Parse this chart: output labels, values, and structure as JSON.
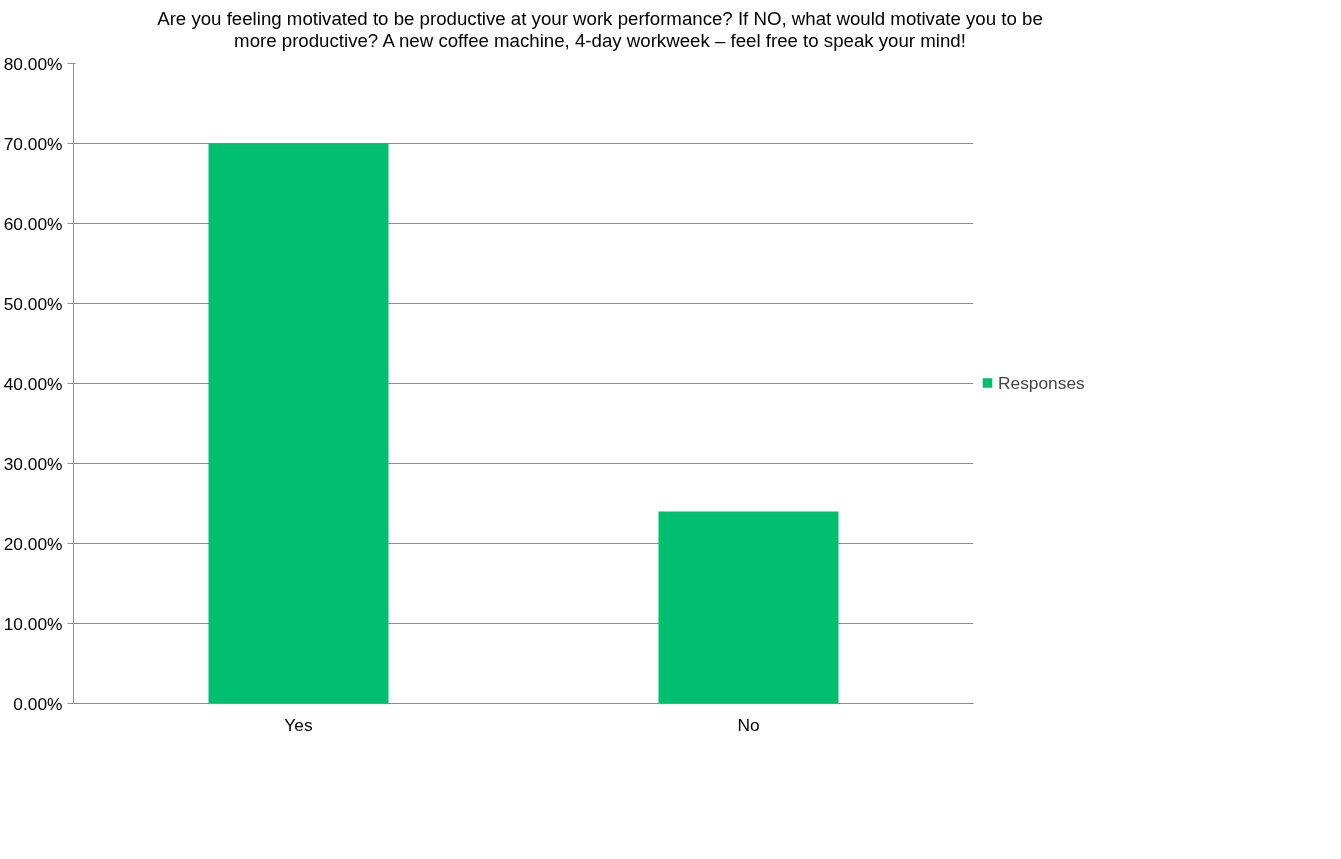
{
  "chart_data": {
    "type": "bar",
    "title": "Are you feeling motivated to be productive at your work performance? If NO, what would motivate you to be more productive? A new coffee machine, 4-day workweek – feel free to speak your mind!",
    "categories": [
      "Yes",
      "No"
    ],
    "series": [
      {
        "name": "Responses",
        "color": "#00bf6f",
        "values": [
          70,
          24
        ]
      }
    ],
    "ylim": [
      0,
      80
    ],
    "yticks": [
      {
        "value": 0,
        "label": "0.00%"
      },
      {
        "value": 10,
        "label": "10.00%"
      },
      {
        "value": 20,
        "label": "20.00%"
      },
      {
        "value": 30,
        "label": "30.00%"
      },
      {
        "value": 40,
        "label": "40.00%"
      },
      {
        "value": 50,
        "label": "50.00%"
      },
      {
        "value": 60,
        "label": "60.00%"
      },
      {
        "value": 70,
        "label": "70.00%"
      },
      {
        "value": 80,
        "label": "80.00%"
      }
    ],
    "grid": "y",
    "legend": "right"
  }
}
